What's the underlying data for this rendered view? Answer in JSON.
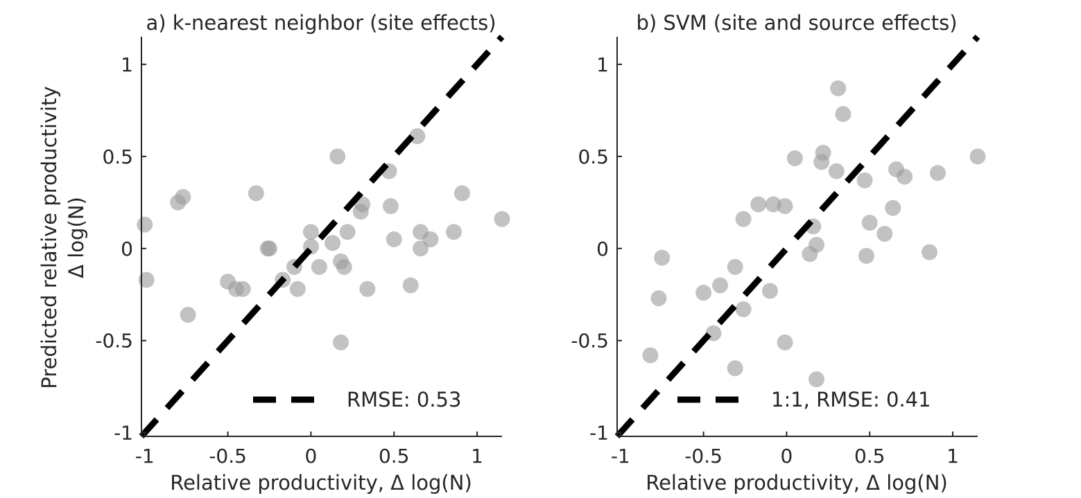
{
  "chart_data": [
    {
      "type": "scatter",
      "title": "a) k-nearest neighbor (site effects)",
      "xlabel": "Relative productivity, Δ log(N)",
      "ylabel": [
        "Predicted relative productivity",
        "Δ log(N)"
      ],
      "xlim": [
        -1.02,
        1.15
      ],
      "ylim": [
        -1.02,
        1.15
      ],
      "xticks": [
        -1,
        -0.5,
        0,
        0.5,
        1
      ],
      "yticks": [
        -1,
        -0.5,
        0,
        0.5,
        1
      ],
      "xtick_labels": [
        "-1",
        "-0.5",
        "0",
        "0.5",
        "1"
      ],
      "ytick_labels": [
        "-1",
        "-0.5",
        "0",
        "0.5",
        "1"
      ],
      "reference_line": {
        "kind": "1:1",
        "style": "dashed",
        "color": "#000000"
      },
      "legend": {
        "position": "bottom-right",
        "label": "RMSE: 0.53"
      },
      "point_color": "#999999",
      "series": [
        {
          "points": [
            [
              -1.0,
              0.13
            ],
            [
              -0.99,
              -0.17
            ],
            [
              -0.8,
              0.25
            ],
            [
              -0.77,
              0.28
            ],
            [
              -0.74,
              -0.36
            ],
            [
              -0.33,
              0.3
            ],
            [
              -0.5,
              -0.18
            ],
            [
              -0.45,
              -0.22
            ],
            [
              -0.41,
              -0.22
            ],
            [
              -0.26,
              0.0
            ],
            [
              -0.25,
              0.0
            ],
            [
              -0.17,
              -0.17
            ],
            [
              -0.1,
              -0.1
            ],
            [
              -0.08,
              -0.22
            ],
            [
              0.0,
              0.09
            ],
            [
              0.0,
              0.01
            ],
            [
              0.05,
              -0.1
            ],
            [
              0.13,
              0.03
            ],
            [
              0.16,
              0.5
            ],
            [
              0.18,
              -0.07
            ],
            [
              0.2,
              -0.1
            ],
            [
              0.18,
              -0.51
            ],
            [
              0.22,
              0.09
            ],
            [
              0.3,
              0.2
            ],
            [
              0.31,
              0.24
            ],
            [
              0.34,
              -0.22
            ],
            [
              0.47,
              0.42
            ],
            [
              0.48,
              0.23
            ],
            [
              0.5,
              0.05
            ],
            [
              0.6,
              -0.2
            ],
            [
              0.64,
              0.61
            ],
            [
              0.66,
              0.09
            ],
            [
              0.66,
              0.0
            ],
            [
              0.72,
              0.05
            ],
            [
              0.86,
              0.09
            ],
            [
              0.91,
              0.3
            ],
            [
              1.15,
              0.16
            ]
          ]
        }
      ]
    },
    {
      "type": "scatter",
      "title": "b) SVM (site and source effects)",
      "xlabel": "Relative productivity, Δ log(N)",
      "ylabel": "",
      "xlim": [
        -1.02,
        1.15
      ],
      "ylim": [
        -1.02,
        1.15
      ],
      "xticks": [
        -1,
        -0.5,
        0,
        0.5,
        1
      ],
      "yticks": [
        -1,
        -0.5,
        0,
        0.5,
        1
      ],
      "xtick_labels": [
        "-1",
        "-0.5",
        "0",
        "0.5",
        "1"
      ],
      "ytick_labels": [
        "-1",
        "-0.5",
        "0",
        "0.5",
        "1"
      ],
      "reference_line": {
        "kind": "1:1",
        "style": "dashed",
        "color": "#000000"
      },
      "legend": {
        "position": "bottom-right",
        "label": "1:1, RMSE: 0.41"
      },
      "point_color": "#999999",
      "series": [
        {
          "points": [
            [
              -0.82,
              -0.58
            ],
            [
              -0.77,
              -0.27
            ],
            [
              -0.75,
              -0.05
            ],
            [
              -0.5,
              -0.24
            ],
            [
              -0.44,
              -0.46
            ],
            [
              -0.4,
              -0.2
            ],
            [
              -0.31,
              -0.1
            ],
            [
              -0.31,
              -0.65
            ],
            [
              -0.26,
              0.16
            ],
            [
              -0.26,
              -0.33
            ],
            [
              -0.17,
              0.24
            ],
            [
              -0.1,
              -0.23
            ],
            [
              -0.08,
              0.24
            ],
            [
              -0.01,
              0.23
            ],
            [
              -0.01,
              -0.51
            ],
            [
              0.05,
              0.49
            ],
            [
              0.14,
              -0.03
            ],
            [
              0.16,
              0.12
            ],
            [
              0.18,
              0.02
            ],
            [
              0.18,
              -0.71
            ],
            [
              0.21,
              0.47
            ],
            [
              0.22,
              0.52
            ],
            [
              0.3,
              0.42
            ],
            [
              0.31,
              0.87
            ],
            [
              0.34,
              0.73
            ],
            [
              0.47,
              0.37
            ],
            [
              0.48,
              -0.04
            ],
            [
              0.5,
              0.14
            ],
            [
              0.59,
              0.08
            ],
            [
              0.64,
              0.22
            ],
            [
              0.66,
              0.43
            ],
            [
              0.71,
              0.39
            ],
            [
              0.86,
              -0.02
            ],
            [
              0.91,
              0.41
            ],
            [
              1.15,
              0.5
            ]
          ]
        }
      ]
    }
  ]
}
